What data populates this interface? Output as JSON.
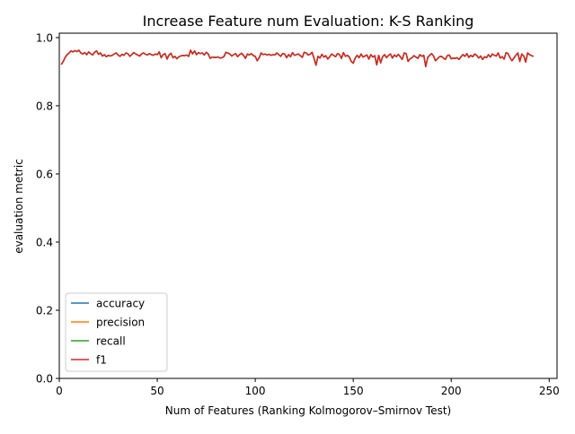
{
  "chart_data": {
    "type": "line",
    "title": "Increase Feature num Evaluation: K-S Ranking",
    "xlabel": "Num of Features (Ranking Kolmogorov–Smirnov Test)",
    "ylabel": "evaluation metric",
    "xlim": [
      0,
      254
    ],
    "ylim": [
      0,
      1.013
    ],
    "xticks": [
      0,
      50,
      100,
      150,
      200,
      250
    ],
    "yticks": [
      0.0,
      0.2,
      0.4,
      0.6,
      0.8,
      1.0
    ],
    "xtick_labels": [
      "0",
      "50",
      "100",
      "150",
      "200",
      "250"
    ],
    "ytick_labels": [
      "0.0",
      "0.2",
      "0.4",
      "0.6",
      "0.8",
      "1.0"
    ],
    "grid": false,
    "legend_position": "lower-left",
    "x_start": 1,
    "series": [
      {
        "name": "accuracy",
        "color": "#1f77b4"
      },
      {
        "name": "precision",
        "color": "#ff7f0e"
      },
      {
        "name": "recall",
        "color": "#2ca02c"
      },
      {
        "name": "f1",
        "color": "#d62728"
      }
    ],
    "values": [
      0.921,
      0.93,
      0.942,
      0.95,
      0.955,
      0.961,
      0.958,
      0.962,
      0.959,
      0.963,
      0.955,
      0.952,
      0.956,
      0.95,
      0.958,
      0.953,
      0.949,
      0.957,
      0.961,
      0.951,
      0.955,
      0.946,
      0.95,
      0.944,
      0.948,
      0.946,
      0.948,
      0.952,
      0.955,
      0.949,
      0.945,
      0.951,
      0.948,
      0.955,
      0.953,
      0.945,
      0.95,
      0.956,
      0.952,
      0.949,
      0.946,
      0.952,
      0.955,
      0.951,
      0.949,
      0.953,
      0.95,
      0.948,
      0.952,
      0.95,
      0.958,
      0.941,
      0.95,
      0.953,
      0.937,
      0.949,
      0.954,
      0.941,
      0.945,
      0.938,
      0.944,
      0.946,
      0.948,
      0.947,
      0.949,
      0.945,
      0.963,
      0.952,
      0.961,
      0.95,
      0.956,
      0.953,
      0.955,
      0.949,
      0.957,
      0.952,
      0.939,
      0.943,
      0.942,
      0.942,
      0.943,
      0.94,
      0.941,
      0.944,
      0.957,
      0.955,
      0.952,
      0.946,
      0.95,
      0.953,
      0.944,
      0.95,
      0.954,
      0.948,
      0.939,
      0.952,
      0.949,
      0.953,
      0.947,
      0.945,
      0.932,
      0.941,
      0.955,
      0.95,
      0.952,
      0.949,
      0.951,
      0.948,
      0.95,
      0.949,
      0.955,
      0.95,
      0.945,
      0.953,
      0.952,
      0.941,
      0.95,
      0.944,
      0.956,
      0.948,
      0.95,
      0.952,
      0.947,
      0.942,
      0.957,
      0.955,
      0.949,
      0.951,
      0.957,
      0.939,
      0.919,
      0.945,
      0.94,
      0.951,
      0.943,
      0.947,
      0.937,
      0.944,
      0.952,
      0.948,
      0.944,
      0.953,
      0.95,
      0.939,
      0.956,
      0.945,
      0.948,
      0.943,
      0.93,
      0.925,
      0.94,
      0.948,
      0.941,
      0.952,
      0.943,
      0.946,
      0.949,
      0.937,
      0.95,
      0.943,
      0.947,
      0.92,
      0.948,
      0.926,
      0.944,
      0.95,
      0.941,
      0.948,
      0.952,
      0.94,
      0.949,
      0.944,
      0.951,
      0.944,
      0.936,
      0.955,
      0.953,
      0.93,
      0.938,
      0.941,
      0.947,
      0.943,
      0.939,
      0.95,
      0.945,
      0.948,
      0.915,
      0.942,
      0.948,
      0.953,
      0.946,
      0.932,
      0.938,
      0.944,
      0.945,
      0.94,
      0.936,
      0.947,
      0.949,
      0.938,
      0.94,
      0.939,
      0.941,
      0.936,
      0.944,
      0.95,
      0.945,
      0.953,
      0.942,
      0.948,
      0.944,
      0.952,
      0.948,
      0.94,
      0.946,
      0.936,
      0.944,
      0.941,
      0.95,
      0.943,
      0.952,
      0.948,
      0.946,
      0.955,
      0.94,
      0.944,
      0.937,
      0.956,
      0.953,
      0.941,
      0.932,
      0.94,
      0.948,
      0.955,
      0.93,
      0.952,
      0.946,
      0.928,
      0.955,
      0.95,
      0.947,
      0.945
    ]
  }
}
